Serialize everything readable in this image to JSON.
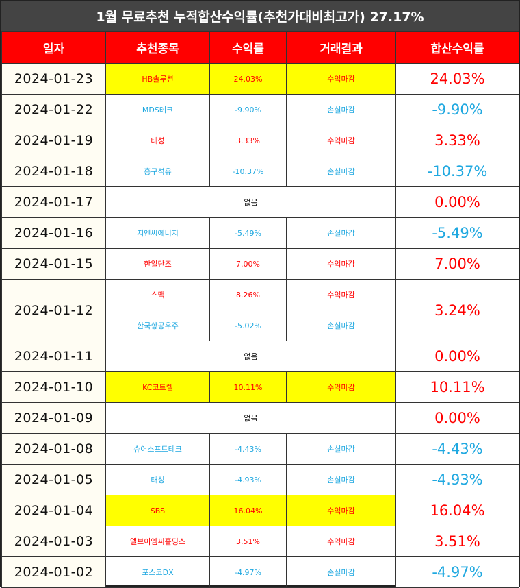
{
  "title": "1월 무료추천 누적합산수익률(추천가대비최고가) 27.17%",
  "headers": [
    "일자",
    "추천종목",
    "수익률",
    "거래결과",
    "합산수익률"
  ],
  "colors": {
    "header_bg": "#ff0000",
    "title_bg": "#444444",
    "highlight": "#ffff00",
    "profit": "#ff0000",
    "loss": "#1fa8e0"
  },
  "rows": [
    {
      "date": "2024-01-23",
      "stock": "HB솔루션",
      "return": "24.03%",
      "result": "수익마감",
      "cum": "24.03%",
      "type": "up",
      "hl": true
    },
    {
      "date": "2024-01-22",
      "stock": "MDS테크",
      "return": "-9.90%",
      "result": "손실마감",
      "cum": "-9.90%",
      "type": "down",
      "hl": false
    },
    {
      "date": "2024-01-19",
      "stock": "태성",
      "return": "3.33%",
      "result": "수익마감",
      "cum": "3.33%",
      "type": "up",
      "hl": false
    },
    {
      "date": "2024-01-18",
      "stock": "흥구석유",
      "return": "-10.37%",
      "result": "손실마감",
      "cum": "-10.37%",
      "type": "down",
      "hl": false
    },
    {
      "date": "2024-01-17",
      "none": "없음",
      "cum": "0.00%",
      "type": "none"
    },
    {
      "date": "2024-01-16",
      "stock": "지엔씨에너지",
      "return": "-5.49%",
      "result": "손실마감",
      "cum": "-5.49%",
      "type": "down",
      "hl": false
    },
    {
      "date": "2024-01-15",
      "stock": "한일단조",
      "return": "7.00%",
      "result": "수익마감",
      "cum": "7.00%",
      "type": "up",
      "hl": false
    },
    {
      "date": "2024-01-12",
      "cum": "3.24%",
      "type": "double",
      "entries": [
        {
          "stock": "스맥",
          "return": "8.26%",
          "result": "수익마감",
          "type": "up"
        },
        {
          "stock": "한국항공우주",
          "return": "-5.02%",
          "result": "손실마감",
          "type": "down"
        }
      ]
    },
    {
      "date": "2024-01-11",
      "none": "없음",
      "cum": "0.00%",
      "type": "none"
    },
    {
      "date": "2024-01-10",
      "stock": "KC코트렐",
      "return": "10.11%",
      "result": "수익마감",
      "cum": "10.11%",
      "type": "up",
      "hl": true
    },
    {
      "date": "2024-01-09",
      "none": "없음",
      "cum": "0.00%",
      "type": "none"
    },
    {
      "date": "2024-01-08",
      "stock": "슈어소프트테크",
      "return": "-4.43%",
      "result": "손실마감",
      "cum": "-4.43%",
      "type": "down",
      "hl": false
    },
    {
      "date": "2024-01-05",
      "stock": "태성",
      "return": "-4.93%",
      "result": "손실마감",
      "cum": "-4.93%",
      "type": "down",
      "hl": false
    },
    {
      "date": "2024-01-04",
      "stock": "SBS",
      "return": "16.04%",
      "result": "수익마감",
      "cum": "16.04%",
      "type": "up",
      "hl": true
    },
    {
      "date": "2024-01-03",
      "stock": "엘브이엠씨홀딩스",
      "return": "3.51%",
      "result": "수익마감",
      "cum": "3.51%",
      "type": "up",
      "hl": false
    },
    {
      "date": "2024-01-02",
      "stock": "포스코DX",
      "return": "-4.97%",
      "result": "손실마감",
      "cum": "-4.97%",
      "type": "down",
      "hl": false
    }
  ]
}
